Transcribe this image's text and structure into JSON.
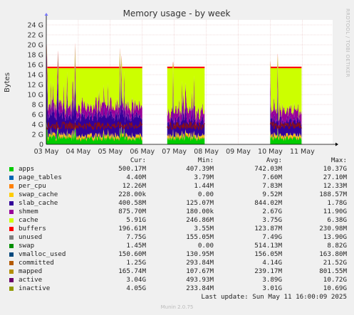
{
  "chart_data": {
    "type": "area",
    "title": "Memory usage - by week",
    "ylabel": "Bytes",
    "ylim": [
      0,
      25
    ],
    "y_unit": "G",
    "y_ticks": [
      "0",
      "2 G",
      "4 G",
      "6 G",
      "8 G",
      "10 G",
      "12 G",
      "14 G",
      "16 G",
      "18 G",
      "20 G",
      "22 G",
      "24 G"
    ],
    "x_ticks": [
      "03 May",
      "04 May",
      "05 May",
      "06 May",
      "07 May",
      "08 May",
      "09 May",
      "10 May",
      "11 May"
    ],
    "grid": true,
    "columns": [
      "Cur:",
      "Min:",
      "Avg:",
      "Max:"
    ],
    "series": [
      {
        "name": "apps",
        "color": "#00cc00",
        "cur": "500.17M",
        "min": "407.39M",
        "avg": "742.03M",
        "max": "10.37G"
      },
      {
        "name": "page_tables",
        "color": "#0066b3",
        "cur": "4.40M",
        "min": "3.79M",
        "avg": "7.60M",
        "max": "27.10M"
      },
      {
        "name": "per_cpu",
        "color": "#ff8000",
        "cur": "12.26M",
        "min": "1.44M",
        "avg": "7.83M",
        "max": "12.33M"
      },
      {
        "name": "swap_cache",
        "color": "#ffcc00",
        "cur": "228.00k",
        "min": "0.00",
        "avg": "9.52M",
        "max": "188.57M"
      },
      {
        "name": "slab_cache",
        "color": "#330099",
        "cur": "400.58M",
        "min": "125.07M",
        "avg": "844.02M",
        "max": "1.78G"
      },
      {
        "name": "shmem",
        "color": "#990099",
        "cur": "875.70M",
        "min": "180.00k",
        "avg": "2.67G",
        "max": "11.90G"
      },
      {
        "name": "cache",
        "color": "#ccff00",
        "cur": "5.91G",
        "min": "246.86M",
        "avg": "3.75G",
        "max": "6.38G"
      },
      {
        "name": "buffers",
        "color": "#ff0000",
        "cur": "196.61M",
        "min": "3.55M",
        "avg": "123.87M",
        "max": "230.98M"
      },
      {
        "name": "unused",
        "color": "#808080",
        "cur": "7.75G",
        "min": "155.05M",
        "avg": "7.49G",
        "max": "13.90G"
      },
      {
        "name": "swap",
        "color": "#008f00",
        "cur": "1.45M",
        "min": "0.00",
        "avg": "514.13M",
        "max": "8.82G"
      },
      {
        "name": "vmalloc_used",
        "color": "#00487d",
        "cur": "150.60M",
        "min": "130.95M",
        "avg": "156.05M",
        "max": "163.80M"
      },
      {
        "name": "committed",
        "color": "#b35a00",
        "cur": "1.25G",
        "min": "293.84M",
        "avg": "4.14G",
        "max": "21.52G"
      },
      {
        "name": "mapped",
        "color": "#b38f00",
        "cur": "165.74M",
        "min": "107.67M",
        "avg": "239.17M",
        "max": "801.55M"
      },
      {
        "name": "active",
        "color": "#6b006b",
        "cur": "3.04G",
        "min": "493.93M",
        "avg": "3.89G",
        "max": "10.72G"
      },
      {
        "name": "inactive",
        "color": "#8f9900",
        "cur": "4.05G",
        "min": "233.84M",
        "avg": "3.01G",
        "max": "10.69G"
      }
    ],
    "data_segments": [
      {
        "from_day": 0.0,
        "to_day": 3.0
      },
      {
        "from_day": 3.78,
        "to_day": 4.95
      },
      {
        "from_day": 7.0,
        "to_day": 7.98
      }
    ],
    "last_update": "Last update: Sun May 11 16:00:09 2025",
    "footer": "Munin 2.0.75",
    "watermark": "RRDTOOL / TOBI OETIKER"
  }
}
